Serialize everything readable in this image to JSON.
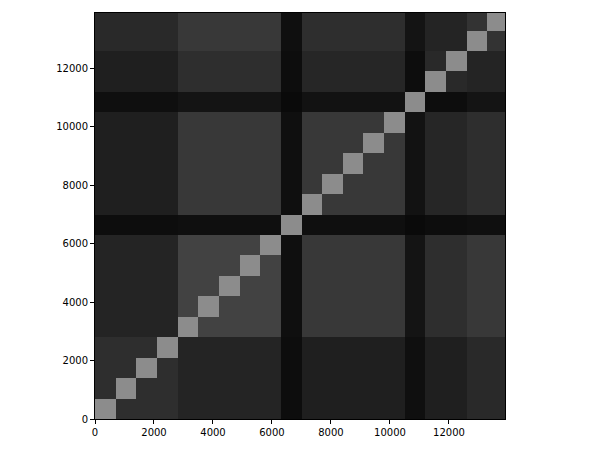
{
  "chart_data": {
    "type": "heatmap",
    "x": [
      350,
      1050,
      1750,
      2450,
      3150,
      3850,
      4550,
      5250,
      5950,
      6650,
      7350,
      8050,
      8750,
      9450,
      10150,
      10850,
      11550,
      12250,
      12950,
      13650
    ],
    "y": [
      350,
      1050,
      1750,
      2450,
      3150,
      3850,
      4550,
      5250,
      5950,
      6650,
      7350,
      8050,
      8750,
      9450,
      10150,
      10850,
      11550,
      12250,
      12950,
      13650
    ],
    "z": [
      [
        0.55,
        0.18,
        0.18,
        0.18,
        0.14,
        0.14,
        0.14,
        0.14,
        0.14,
        0.05,
        0.12,
        0.12,
        0.12,
        0.12,
        0.12,
        0.06,
        0.12,
        0.12,
        0.16,
        0.16
      ],
      [
        0.18,
        0.55,
        0.18,
        0.18,
        0.14,
        0.14,
        0.14,
        0.14,
        0.14,
        0.05,
        0.12,
        0.12,
        0.12,
        0.12,
        0.12,
        0.06,
        0.12,
        0.12,
        0.16,
        0.16
      ],
      [
        0.18,
        0.18,
        0.55,
        0.18,
        0.14,
        0.14,
        0.14,
        0.14,
        0.14,
        0.05,
        0.12,
        0.12,
        0.12,
        0.12,
        0.12,
        0.06,
        0.12,
        0.12,
        0.16,
        0.16
      ],
      [
        0.18,
        0.18,
        0.18,
        0.55,
        0.14,
        0.14,
        0.14,
        0.14,
        0.14,
        0.05,
        0.12,
        0.12,
        0.12,
        0.12,
        0.12,
        0.06,
        0.12,
        0.12,
        0.16,
        0.16
      ],
      [
        0.14,
        0.14,
        0.14,
        0.14,
        0.55,
        0.26,
        0.26,
        0.26,
        0.26,
        0.06,
        0.22,
        0.22,
        0.22,
        0.22,
        0.22,
        0.08,
        0.18,
        0.18,
        0.22,
        0.22
      ],
      [
        0.14,
        0.14,
        0.14,
        0.14,
        0.26,
        0.55,
        0.26,
        0.26,
        0.26,
        0.06,
        0.22,
        0.22,
        0.22,
        0.22,
        0.22,
        0.08,
        0.18,
        0.18,
        0.22,
        0.22
      ],
      [
        0.14,
        0.14,
        0.14,
        0.14,
        0.26,
        0.26,
        0.55,
        0.26,
        0.26,
        0.06,
        0.22,
        0.22,
        0.22,
        0.22,
        0.22,
        0.08,
        0.18,
        0.18,
        0.22,
        0.22
      ],
      [
        0.14,
        0.14,
        0.14,
        0.14,
        0.26,
        0.26,
        0.26,
        0.55,
        0.26,
        0.06,
        0.22,
        0.22,
        0.22,
        0.22,
        0.22,
        0.08,
        0.18,
        0.18,
        0.22,
        0.22
      ],
      [
        0.14,
        0.14,
        0.14,
        0.14,
        0.26,
        0.26,
        0.26,
        0.26,
        0.55,
        0.06,
        0.22,
        0.22,
        0.22,
        0.22,
        0.22,
        0.08,
        0.18,
        0.18,
        0.22,
        0.22
      ],
      [
        0.05,
        0.05,
        0.05,
        0.05,
        0.06,
        0.06,
        0.06,
        0.06,
        0.06,
        0.55,
        0.06,
        0.06,
        0.06,
        0.06,
        0.06,
        0.04,
        0.05,
        0.05,
        0.06,
        0.06
      ],
      [
        0.12,
        0.12,
        0.12,
        0.12,
        0.22,
        0.22,
        0.22,
        0.22,
        0.22,
        0.06,
        0.55,
        0.22,
        0.22,
        0.22,
        0.22,
        0.07,
        0.15,
        0.15,
        0.18,
        0.18
      ],
      [
        0.12,
        0.12,
        0.12,
        0.12,
        0.22,
        0.22,
        0.22,
        0.22,
        0.22,
        0.06,
        0.22,
        0.55,
        0.22,
        0.22,
        0.22,
        0.07,
        0.15,
        0.15,
        0.18,
        0.18
      ],
      [
        0.12,
        0.12,
        0.12,
        0.12,
        0.22,
        0.22,
        0.22,
        0.22,
        0.22,
        0.06,
        0.22,
        0.22,
        0.55,
        0.22,
        0.22,
        0.07,
        0.15,
        0.15,
        0.18,
        0.18
      ],
      [
        0.12,
        0.12,
        0.12,
        0.12,
        0.22,
        0.22,
        0.22,
        0.22,
        0.22,
        0.06,
        0.22,
        0.22,
        0.22,
        0.55,
        0.22,
        0.07,
        0.15,
        0.15,
        0.18,
        0.18
      ],
      [
        0.12,
        0.12,
        0.12,
        0.12,
        0.22,
        0.22,
        0.22,
        0.22,
        0.22,
        0.06,
        0.22,
        0.22,
        0.22,
        0.22,
        0.55,
        0.07,
        0.15,
        0.15,
        0.18,
        0.18
      ],
      [
        0.06,
        0.06,
        0.06,
        0.06,
        0.08,
        0.08,
        0.08,
        0.08,
        0.08,
        0.04,
        0.07,
        0.07,
        0.07,
        0.07,
        0.07,
        0.55,
        0.05,
        0.05,
        0.08,
        0.08
      ],
      [
        0.12,
        0.12,
        0.12,
        0.12,
        0.18,
        0.18,
        0.18,
        0.18,
        0.18,
        0.05,
        0.15,
        0.15,
        0.15,
        0.15,
        0.15,
        0.05,
        0.55,
        0.16,
        0.14,
        0.14
      ],
      [
        0.12,
        0.12,
        0.12,
        0.12,
        0.18,
        0.18,
        0.18,
        0.18,
        0.18,
        0.05,
        0.15,
        0.15,
        0.15,
        0.15,
        0.15,
        0.05,
        0.16,
        0.55,
        0.14,
        0.14
      ],
      [
        0.16,
        0.16,
        0.16,
        0.16,
        0.22,
        0.22,
        0.22,
        0.22,
        0.22,
        0.06,
        0.18,
        0.18,
        0.18,
        0.18,
        0.18,
        0.08,
        0.14,
        0.14,
        0.55,
        0.2
      ],
      [
        0.16,
        0.16,
        0.16,
        0.16,
        0.22,
        0.22,
        0.22,
        0.22,
        0.22,
        0.06,
        0.18,
        0.18,
        0.18,
        0.18,
        0.18,
        0.08,
        0.14,
        0.14,
        0.2,
        0.55
      ]
    ],
    "zlim": [
      0,
      1
    ],
    "xlim": [
      0,
      13900
    ],
    "ylim": [
      0,
      13900
    ],
    "xticks": [
      0,
      2000,
      4000,
      6000,
      8000,
      10000,
      12000
    ],
    "yticks": [
      0,
      2000,
      4000,
      6000,
      8000,
      10000,
      12000
    ],
    "grid": false
  }
}
